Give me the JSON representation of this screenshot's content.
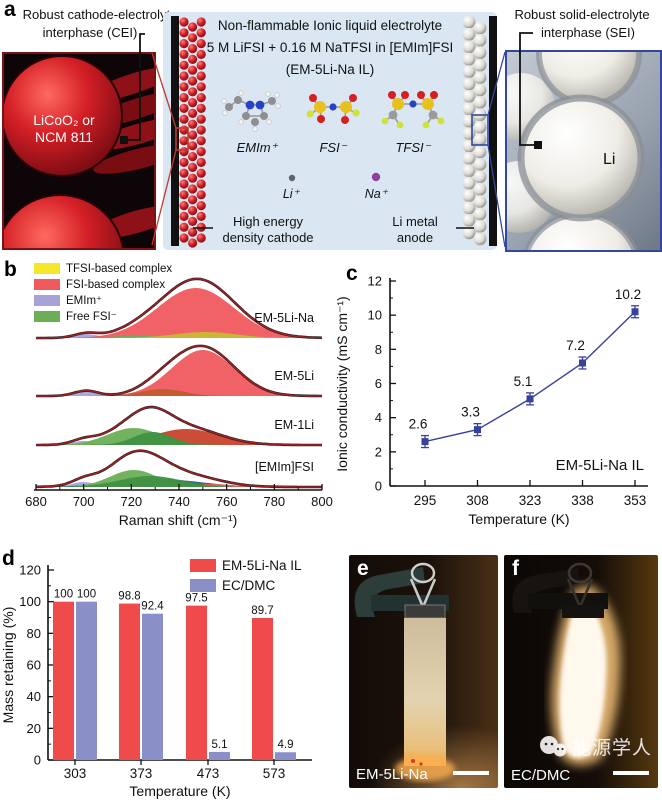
{
  "panel_labels": {
    "a": "a",
    "b": "b",
    "c": "c",
    "d": "d",
    "e": "e",
    "f": "f"
  },
  "panel_a": {
    "left_caption": [
      "Robust cathode-electrolyte",
      "interphase (CEI)"
    ],
    "left_image_text": [
      "LiCoO₂ or",
      "NCM 811"
    ],
    "center_title": "Non-flammable Ionic liquid electrolyte",
    "center_formula": "5 M LiFSI + 0.16 M NaTFSI in [EMIm]FSI",
    "center_name": "(EM-5Li-Na IL)",
    "molecules": {
      "emim": "EMIm⁺",
      "fsi": "FSI⁻",
      "tfsi": "TFSI⁻"
    },
    "ions": {
      "li": "Li⁺",
      "na": "Na⁺"
    },
    "cathode_label": [
      "High energy",
      "density cathode"
    ],
    "anode_label": [
      "Li metal",
      "anode"
    ],
    "right_caption": [
      "Robust solid-electrolyte",
      "interphase (SEI)"
    ],
    "right_image_text": "Li",
    "colors": {
      "panel_bg": "#DAE7F2",
      "red_link": "#C0392B",
      "blue_link": "#34479E"
    }
  },
  "chart_data": [
    {
      "id": "raman",
      "type": "area",
      "xlabel": "Raman shift (cm⁻¹)",
      "xlim": [
        680,
        800
      ],
      "xticks": [
        680,
        700,
        720,
        740,
        760,
        780,
        800
      ],
      "legend": [
        {
          "label": "TFSI-based complex",
          "color": "#F5E62A"
        },
        {
          "label": "FSI-based complex",
          "color": "#EF5A5E"
        },
        {
          "label": "EMIm⁺",
          "color": "#A7A3D9"
        },
        {
          "label": "Free FSI⁻",
          "color": "#6BAE55"
        }
      ],
      "envelope_color": "#A32125",
      "spectra": [
        {
          "label": "EM-5Li-Na",
          "components": [
            {
              "color": "#A7A3D9",
              "center": 701,
              "height": 4,
              "width": 5
            },
            {
              "color": "#EF5A5E",
              "center": 747,
              "height": 50,
              "width": 16
            },
            {
              "color": "#6BAE55",
              "center": 722,
              "height": 2.5,
              "width": 9
            },
            {
              "color": "#C9B832",
              "center": 751,
              "height": 6,
              "width": 13
            }
          ]
        },
        {
          "label": "EM-5Li",
          "components": [
            {
              "color": "#A7A3D9",
              "center": 701,
              "height": 5,
              "width": 5
            },
            {
              "color": "#EF5A5E",
              "center": 750,
              "height": 46,
              "width": 13
            },
            {
              "color": "#C25A2E",
              "center": 733,
              "height": 7,
              "width": 9
            }
          ]
        },
        {
          "label": "EM-1Li",
          "components": [
            {
              "color": "#A7A3D9",
              "center": 700,
              "height": 4,
              "width": 5
            },
            {
              "color": "#C8432C",
              "center": 743,
              "height": 16,
              "width": 14
            },
            {
              "color": "#6BAE55",
              "center": 721,
              "height": 17,
              "width": 11
            },
            {
              "color": "#3F9142",
              "center": 729,
              "height": 13,
              "width": 8
            }
          ]
        },
        {
          "label": "[EMIm]FSI",
          "components": [
            {
              "color": "#A7A3D9",
              "center": 700,
              "height": 5,
              "width": 5
            },
            {
              "color": "#2F5F8A",
              "center": 731,
              "height": 8,
              "width": 18
            },
            {
              "color": "#EF5A5E",
              "center": 752,
              "height": 3,
              "width": 10
            },
            {
              "color": "#6BAE55",
              "center": 721,
              "height": 17,
              "width": 10
            },
            {
              "color": "#3F9142",
              "center": 728,
              "height": 11,
              "width": 13
            }
          ]
        }
      ]
    },
    {
      "id": "conductivity",
      "type": "line",
      "x": [
        295,
        308,
        323,
        338,
        353
      ],
      "y": [
        2.6,
        3.3,
        5.1,
        7.2,
        10.2
      ],
      "labels": [
        "2.6",
        "3.3",
        "5.1",
        "7.2",
        "10.2"
      ],
      "yerr": 0.35,
      "xlabel": "Temperature (K)",
      "ylabel": "Ionic conductivity (mS cm⁻¹)",
      "ylim": [
        0,
        12
      ],
      "yticks": [
        0,
        2,
        4,
        6,
        8,
        10,
        12
      ],
      "annotation": "EM-5Li-Na IL",
      "color": "#36429B"
    },
    {
      "id": "mass",
      "type": "bar",
      "categories": [
        "303",
        "373",
        "473",
        "573"
      ],
      "series": [
        {
          "name": "EM-5Li-Na IL",
          "color": "#EF4B4B",
          "values": [
            100,
            98.8,
            97.5,
            89.7
          ],
          "labels": [
            "100",
            "98.8",
            "97.5",
            "89.7"
          ]
        },
        {
          "name": "EC/DMC",
          "color": "#8B8FC8",
          "values": [
            100,
            92.4,
            5.1,
            4.9
          ],
          "labels": [
            "100",
            "92.4",
            "5.1",
            "4.9"
          ]
        }
      ],
      "xlabel": "Temperature (K)",
      "ylabel": "Mass retaining (%)",
      "ylim": [
        0,
        120
      ],
      "yticks": [
        0,
        20,
        40,
        60,
        80,
        100,
        120
      ]
    }
  ],
  "panel_e": {
    "label": "EM-5Li-Na"
  },
  "panel_f": {
    "label": "EC/DMC",
    "watermark": "能源学人"
  }
}
